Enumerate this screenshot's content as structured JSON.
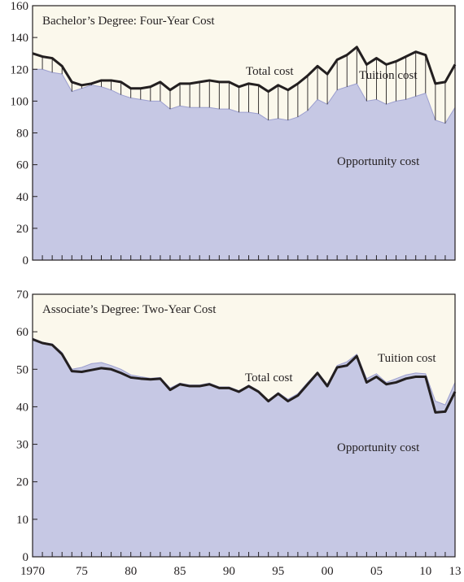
{
  "chart_data": [
    {
      "type": "area",
      "title": "Bachelor’s Degree: Four-Year Cost",
      "xlabel": "",
      "ylabel": "",
      "ylim": [
        0,
        160
      ],
      "yticks": [
        0,
        20,
        40,
        60,
        80,
        100,
        120,
        140,
        160
      ],
      "xlim": [
        1970,
        2013
      ],
      "grid": false,
      "x": [
        1970,
        1971,
        1972,
        1973,
        1974,
        1975,
        1976,
        1977,
        1978,
        1979,
        1980,
        1981,
        1982,
        1983,
        1984,
        1985,
        1986,
        1987,
        1988,
        1989,
        1990,
        1991,
        1992,
        1993,
        1994,
        1995,
        1996,
        1997,
        1998,
        1999,
        2000,
        2001,
        2002,
        2003,
        2004,
        2005,
        2006,
        2007,
        2008,
        2009,
        2010,
        2011,
        2012,
        2013
      ],
      "series": [
        {
          "name": "Total cost",
          "values": [
            130,
            128,
            127,
            122,
            112,
            110,
            111,
            113,
            113,
            112,
            108,
            108,
            109,
            112,
            107,
            111,
            111,
            112,
            113,
            112,
            112,
            109,
            111,
            110,
            106,
            110,
            107,
            111,
            116,
            122,
            117,
            126,
            129,
            134,
            123,
            127,
            123,
            125,
            128,
            131,
            129,
            111,
            112,
            123
          ]
        },
        {
          "name": "Opportunity cost",
          "values": [
            120,
            120,
            118,
            117,
            106,
            108,
            110,
            109,
            107,
            104,
            102,
            101,
            100,
            100,
            95,
            97,
            96,
            96,
            96,
            95,
            95,
            93,
            93,
            92,
            88,
            89,
            88,
            90,
            94,
            101,
            98,
            107,
            109,
            111,
            100,
            101,
            98,
            100,
            101,
            103,
            105,
            88,
            86,
            96
          ]
        }
      ],
      "annotations": [
        "Total cost",
        "Tuition cost",
        "Opportunity cost"
      ]
    },
    {
      "type": "area",
      "title": "Associate’s Degree: Two-Year Cost",
      "xlabel": "",
      "ylabel": "",
      "ylim": [
        0,
        70
      ],
      "yticks": [
        0,
        10,
        20,
        30,
        40,
        50,
        60,
        70
      ],
      "xlim": [
        1970,
        2013
      ],
      "grid": false,
      "x": [
        1970,
        1971,
        1972,
        1973,
        1974,
        1975,
        1976,
        1977,
        1978,
        1979,
        1980,
        1981,
        1982,
        1983,
        1984,
        1985,
        1986,
        1987,
        1988,
        1989,
        1990,
        1991,
        1992,
        1993,
        1994,
        1995,
        1996,
        1997,
        1998,
        1999,
        2000,
        2001,
        2002,
        2003,
        2004,
        2005,
        2006,
        2007,
        2008,
        2009,
        2010,
        2011,
        2012,
        2013
      ],
      "series": [
        {
          "name": "Total cost",
          "values": [
            58,
            57,
            56.5,
            54,
            49.5,
            49.3,
            49.8,
            50.3,
            50,
            49,
            47.8,
            47.5,
            47.3,
            47.5,
            44.5,
            46,
            45.5,
            45.5,
            46,
            45,
            45,
            44,
            45.5,
            44,
            41.5,
            43.5,
            41.5,
            43,
            46,
            49,
            45.5,
            50.5,
            51,
            53.5,
            46.5,
            48,
            46,
            46.5,
            47.5,
            48,
            48,
            38.5,
            38.7,
            44
          ]
        },
        {
          "name": "Opportunity cost",
          "values": [
            58.3,
            57.2,
            56.8,
            54.5,
            50,
            50.5,
            51.5,
            51.8,
            51,
            50,
            48.5,
            48,
            47.6,
            47.8,
            45,
            46.3,
            45.8,
            45.8,
            46.3,
            45.3,
            45.3,
            44.3,
            45.8,
            44.3,
            41.8,
            43.8,
            42,
            43.5,
            46.5,
            49.3,
            46,
            51,
            52,
            54,
            47.5,
            48.8,
            46.5,
            47.5,
            48.5,
            49,
            48.8,
            41.5,
            40.5,
            46.5
          ]
        }
      ],
      "annotations": [
        "Total cost",
        "Tuition cost",
        "Opportunity cost"
      ]
    }
  ],
  "x_tick_labels": [
    "1970",
    "75",
    "80",
    "85",
    "90",
    "95",
    "00",
    "05",
    "10",
    "13"
  ],
  "colors": {
    "background": "#fbf8ec",
    "area": "#c6c8e4",
    "area_edge": "#9c9fcf",
    "line": "#231f20"
  }
}
